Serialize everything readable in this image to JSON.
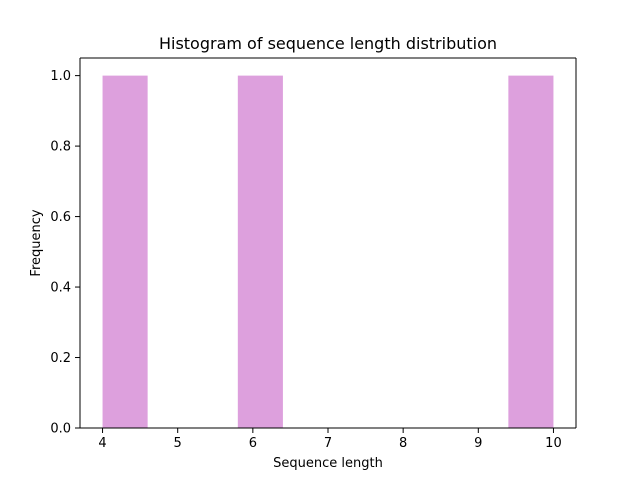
{
  "chart_data": {
    "type": "bar",
    "title": "Histogram of sequence length distribution",
    "xlabel": "Sequence length",
    "ylabel": "Frequency",
    "bins": [
      {
        "x0": 4.0,
        "x1": 4.6,
        "count": 1
      },
      {
        "x0": 4.6,
        "x1": 5.2,
        "count": 0
      },
      {
        "x0": 5.2,
        "x1": 5.8,
        "count": 0
      },
      {
        "x0": 5.8,
        "x1": 6.4,
        "count": 1
      },
      {
        "x0": 6.4,
        "x1": 7.0,
        "count": 0
      },
      {
        "x0": 7.0,
        "x1": 7.6,
        "count": 0
      },
      {
        "x0": 7.6,
        "x1": 8.2,
        "count": 0
      },
      {
        "x0": 8.2,
        "x1": 8.8,
        "count": 0
      },
      {
        "x0": 8.8,
        "x1": 9.4,
        "count": 0
      },
      {
        "x0": 9.4,
        "x1": 10.0,
        "count": 1
      }
    ],
    "xlim": [
      3.7,
      10.3
    ],
    "ylim": [
      0,
      1.05
    ],
    "xticks": [
      4,
      5,
      6,
      7,
      8,
      9,
      10
    ],
    "xtick_labels": [
      "4",
      "5",
      "6",
      "7",
      "8",
      "9",
      "10"
    ],
    "yticks": [
      0.0,
      0.2,
      0.4,
      0.6,
      0.8,
      1.0
    ],
    "ytick_labels": [
      "0.0",
      "0.2",
      "0.4",
      "0.6",
      "0.8",
      "1.0"
    ],
    "bar_color": "#dda0dd",
    "grid": false,
    "legend": "none"
  }
}
